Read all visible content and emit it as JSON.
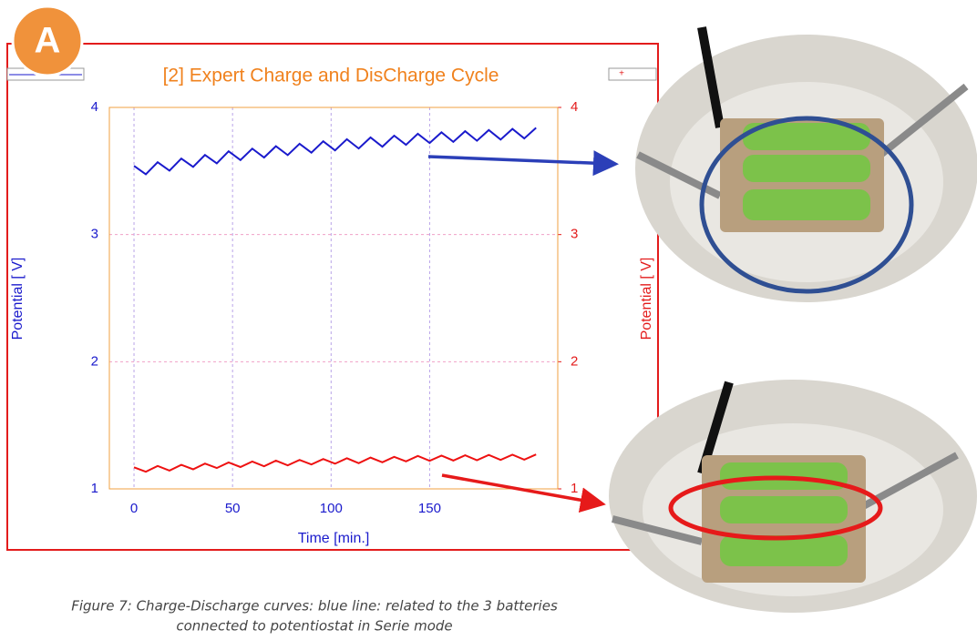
{
  "badge": "A",
  "caption": [
    "Figure 7: Charge-Discharge curves: blue line: related to the 3 batteries",
    "connected to potentiostat in Serie mode"
  ],
  "chart_data": {
    "type": "line",
    "title": "[2] Expert Charge and DisCharge Cycle",
    "x_label": "Time [min.]",
    "y_label": "Potential [ V]",
    "y2_label": "Potential [ V]",
    "legend_mark": "+",
    "xlim": [
      -12.5,
      215
    ],
    "xticks": [
      0,
      50,
      100,
      150
    ],
    "ylim": [
      1,
      4
    ],
    "yticks": [
      1,
      2,
      3,
      4
    ],
    "y2lim": [
      1,
      4
    ],
    "y2ticks": [
      1,
      2,
      3,
      4
    ],
    "grid": true,
    "x": [
      0,
      6,
      12,
      18,
      24,
      30,
      36,
      42,
      48,
      54,
      60,
      66,
      72,
      78,
      84,
      90,
      96,
      102,
      108,
      114,
      120,
      126,
      132,
      138,
      144,
      150,
      156,
      162,
      168,
      174,
      180,
      186,
      192,
      198,
      204
    ],
    "series": [
      {
        "color": "#1a1acc",
        "values": [
          3.54,
          3.474,
          3.569,
          3.503,
          3.598,
          3.532,
          3.626,
          3.56,
          3.655,
          3.586,
          3.676,
          3.606,
          3.695,
          3.625,
          3.714,
          3.644,
          3.734,
          3.662,
          3.75,
          3.677,
          3.764,
          3.691,
          3.778,
          3.706,
          3.793,
          3.72,
          3.804,
          3.729,
          3.813,
          3.738,
          3.822,
          3.747,
          3.831,
          3.756,
          3.84
        ]
      },
      {
        "color": "#ee1111",
        "axis": "y2",
        "values": [
          1.17,
          1.135,
          1.18,
          1.144,
          1.189,
          1.154,
          1.199,
          1.164,
          1.208,
          1.172,
          1.215,
          1.178,
          1.222,
          1.185,
          1.228,
          1.192,
          1.235,
          1.198,
          1.241,
          1.202,
          1.246,
          1.209,
          1.252,
          1.216,
          1.259,
          1.221,
          1.262,
          1.223,
          1.264,
          1.225,
          1.267,
          1.228,
          1.269,
          1.23,
          1.271
        ]
      }
    ]
  }
}
